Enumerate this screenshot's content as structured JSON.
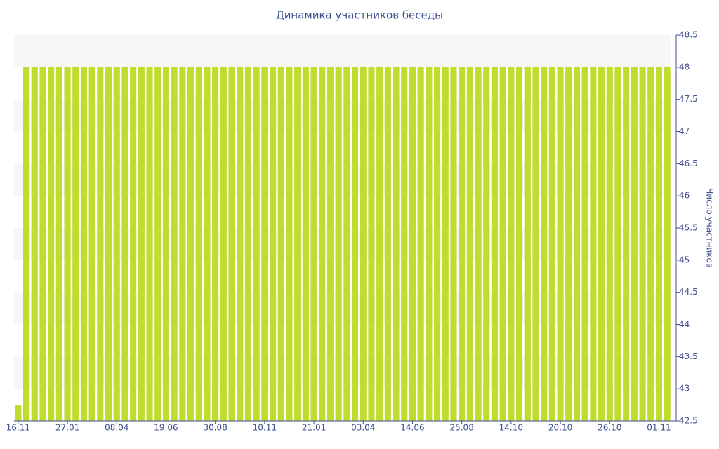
{
  "chart_data": {
    "type": "bar",
    "title": "Динамика участников беседы",
    "y_label": "Число участников",
    "categories": [
      "16.11",
      null,
      null,
      null,
      null,
      null,
      "27.01",
      null,
      null,
      null,
      null,
      null,
      "08.04",
      null,
      null,
      null,
      null,
      null,
      "19.06",
      null,
      null,
      null,
      null,
      null,
      "30.08",
      null,
      null,
      null,
      null,
      null,
      "10.11",
      null,
      null,
      null,
      null,
      null,
      "21.01",
      null,
      null,
      null,
      null,
      null,
      "03.04",
      null,
      null,
      null,
      null,
      null,
      "14.06",
      null,
      null,
      null,
      null,
      null,
      "25.08",
      null,
      null,
      null,
      null,
      null,
      "14.10",
      null,
      null,
      null,
      null,
      null,
      "20.10",
      null,
      null,
      null,
      null,
      null,
      "26.10",
      null,
      null,
      null,
      null,
      null,
      "01.11",
      null
    ],
    "values": [
      42.75,
      48,
      48,
      48,
      48,
      48,
      48,
      48,
      48,
      48,
      48,
      48,
      48,
      48,
      48,
      48,
      48,
      48,
      48,
      48,
      48,
      48,
      48,
      48,
      48,
      48,
      48,
      48,
      48,
      48,
      48,
      48,
      48,
      48,
      48,
      48,
      48,
      48,
      48,
      48,
      48,
      48,
      48,
      48,
      48,
      48,
      48,
      48,
      48,
      48,
      48,
      48,
      48,
      48,
      48,
      48,
      48,
      48,
      48,
      48,
      48,
      48,
      48,
      48,
      48,
      48,
      48,
      48,
      48,
      48,
      48,
      48,
      48,
      48,
      48,
      48,
      48,
      48,
      48,
      48
    ],
    "color": "#c1dc2e",
    "ylim": [
      42.5,
      48.5
    ],
    "yticks": [
      42.5,
      43,
      43.5,
      44,
      44.5,
      45,
      45.5,
      46,
      46.5,
      47,
      47.5,
      48,
      48.5
    ],
    "y_axis_side": "right",
    "grid": "bands"
  }
}
